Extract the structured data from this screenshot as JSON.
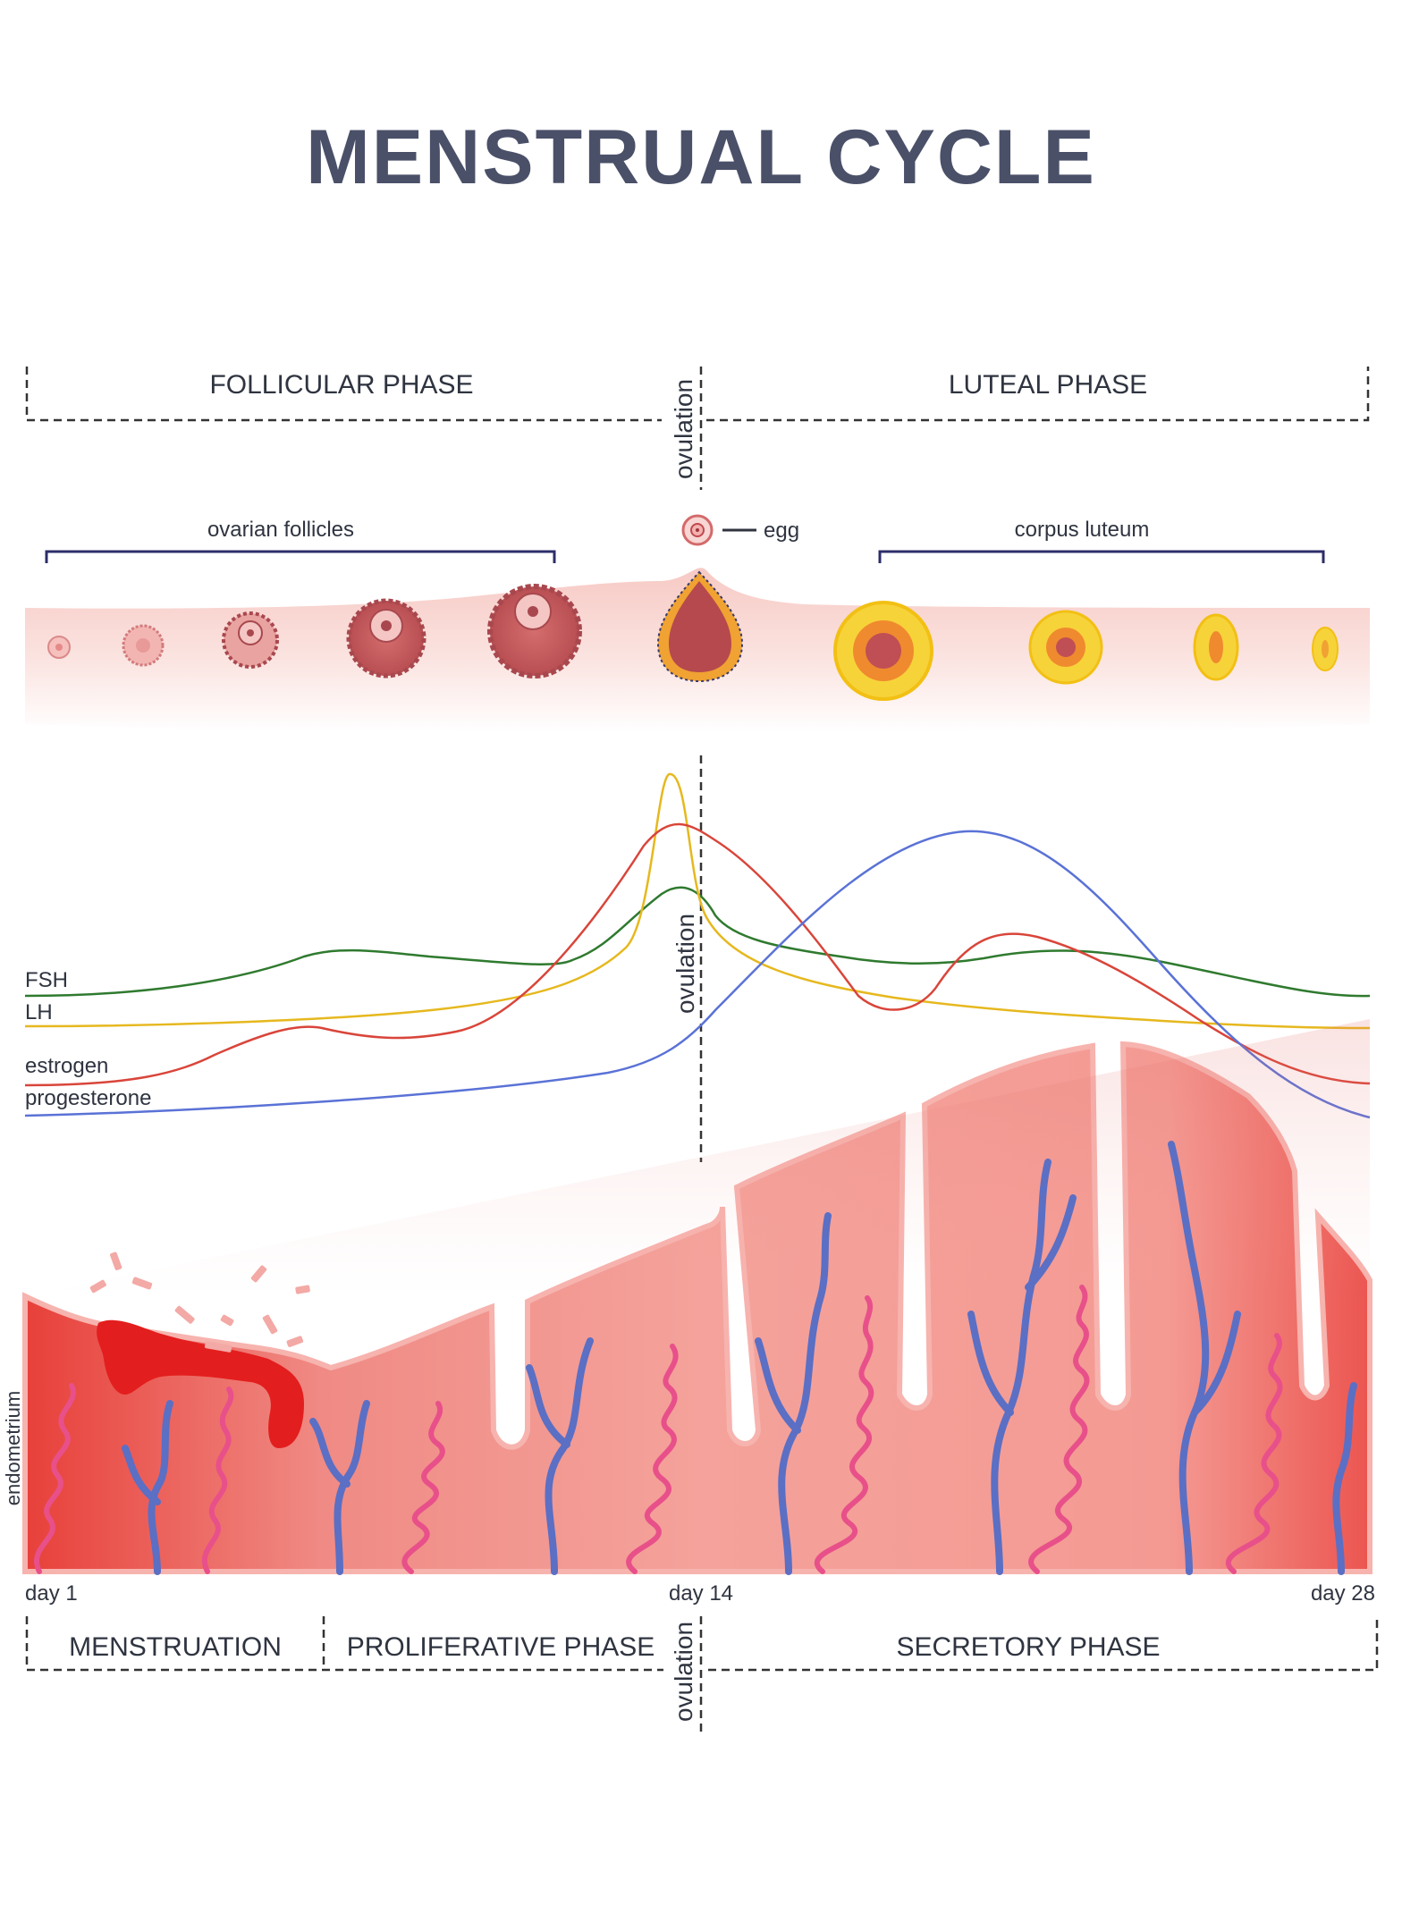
{
  "title": "MENSTRUAL CYCLE",
  "phases_top": {
    "follicular": "FOLLICULAR PHASE",
    "ovulation": "ovulation",
    "luteal": "LUTEAL PHASE"
  },
  "ovary": {
    "follicles_label": "ovarian follicles",
    "egg_label": "egg",
    "corpus_label": "corpus luteum"
  },
  "hormones": {
    "ovulation": "ovulation",
    "labels": {
      "fsh": "FSH",
      "lh": "LH",
      "estrogen": "estrogen",
      "progesterone": "progesterone"
    },
    "colors": {
      "fsh": "#2f7a2f",
      "lh": "#e6b81e",
      "estrogen": "#d9453a",
      "progesterone": "#5a72d6"
    }
  },
  "endometrium": {
    "label": "endometrium"
  },
  "days": {
    "start": "day 1",
    "mid": "day 14",
    "end": "day 28"
  },
  "phases_bottom": {
    "menstruation": "MENSTRUATION",
    "proliferative": "PROLIFERATIVE PHASE",
    "ovulation": "ovulation",
    "secretory": "SECRETORY PHASE"
  },
  "colors": {
    "title": "#4a5068",
    "tissue": "#f29a92",
    "tissue_dark": "#e8605a",
    "blood": "#e31e1e",
    "vein": "#5b6fc4",
    "artery": "#e8508a",
    "corpus": "#f7d33a"
  }
}
